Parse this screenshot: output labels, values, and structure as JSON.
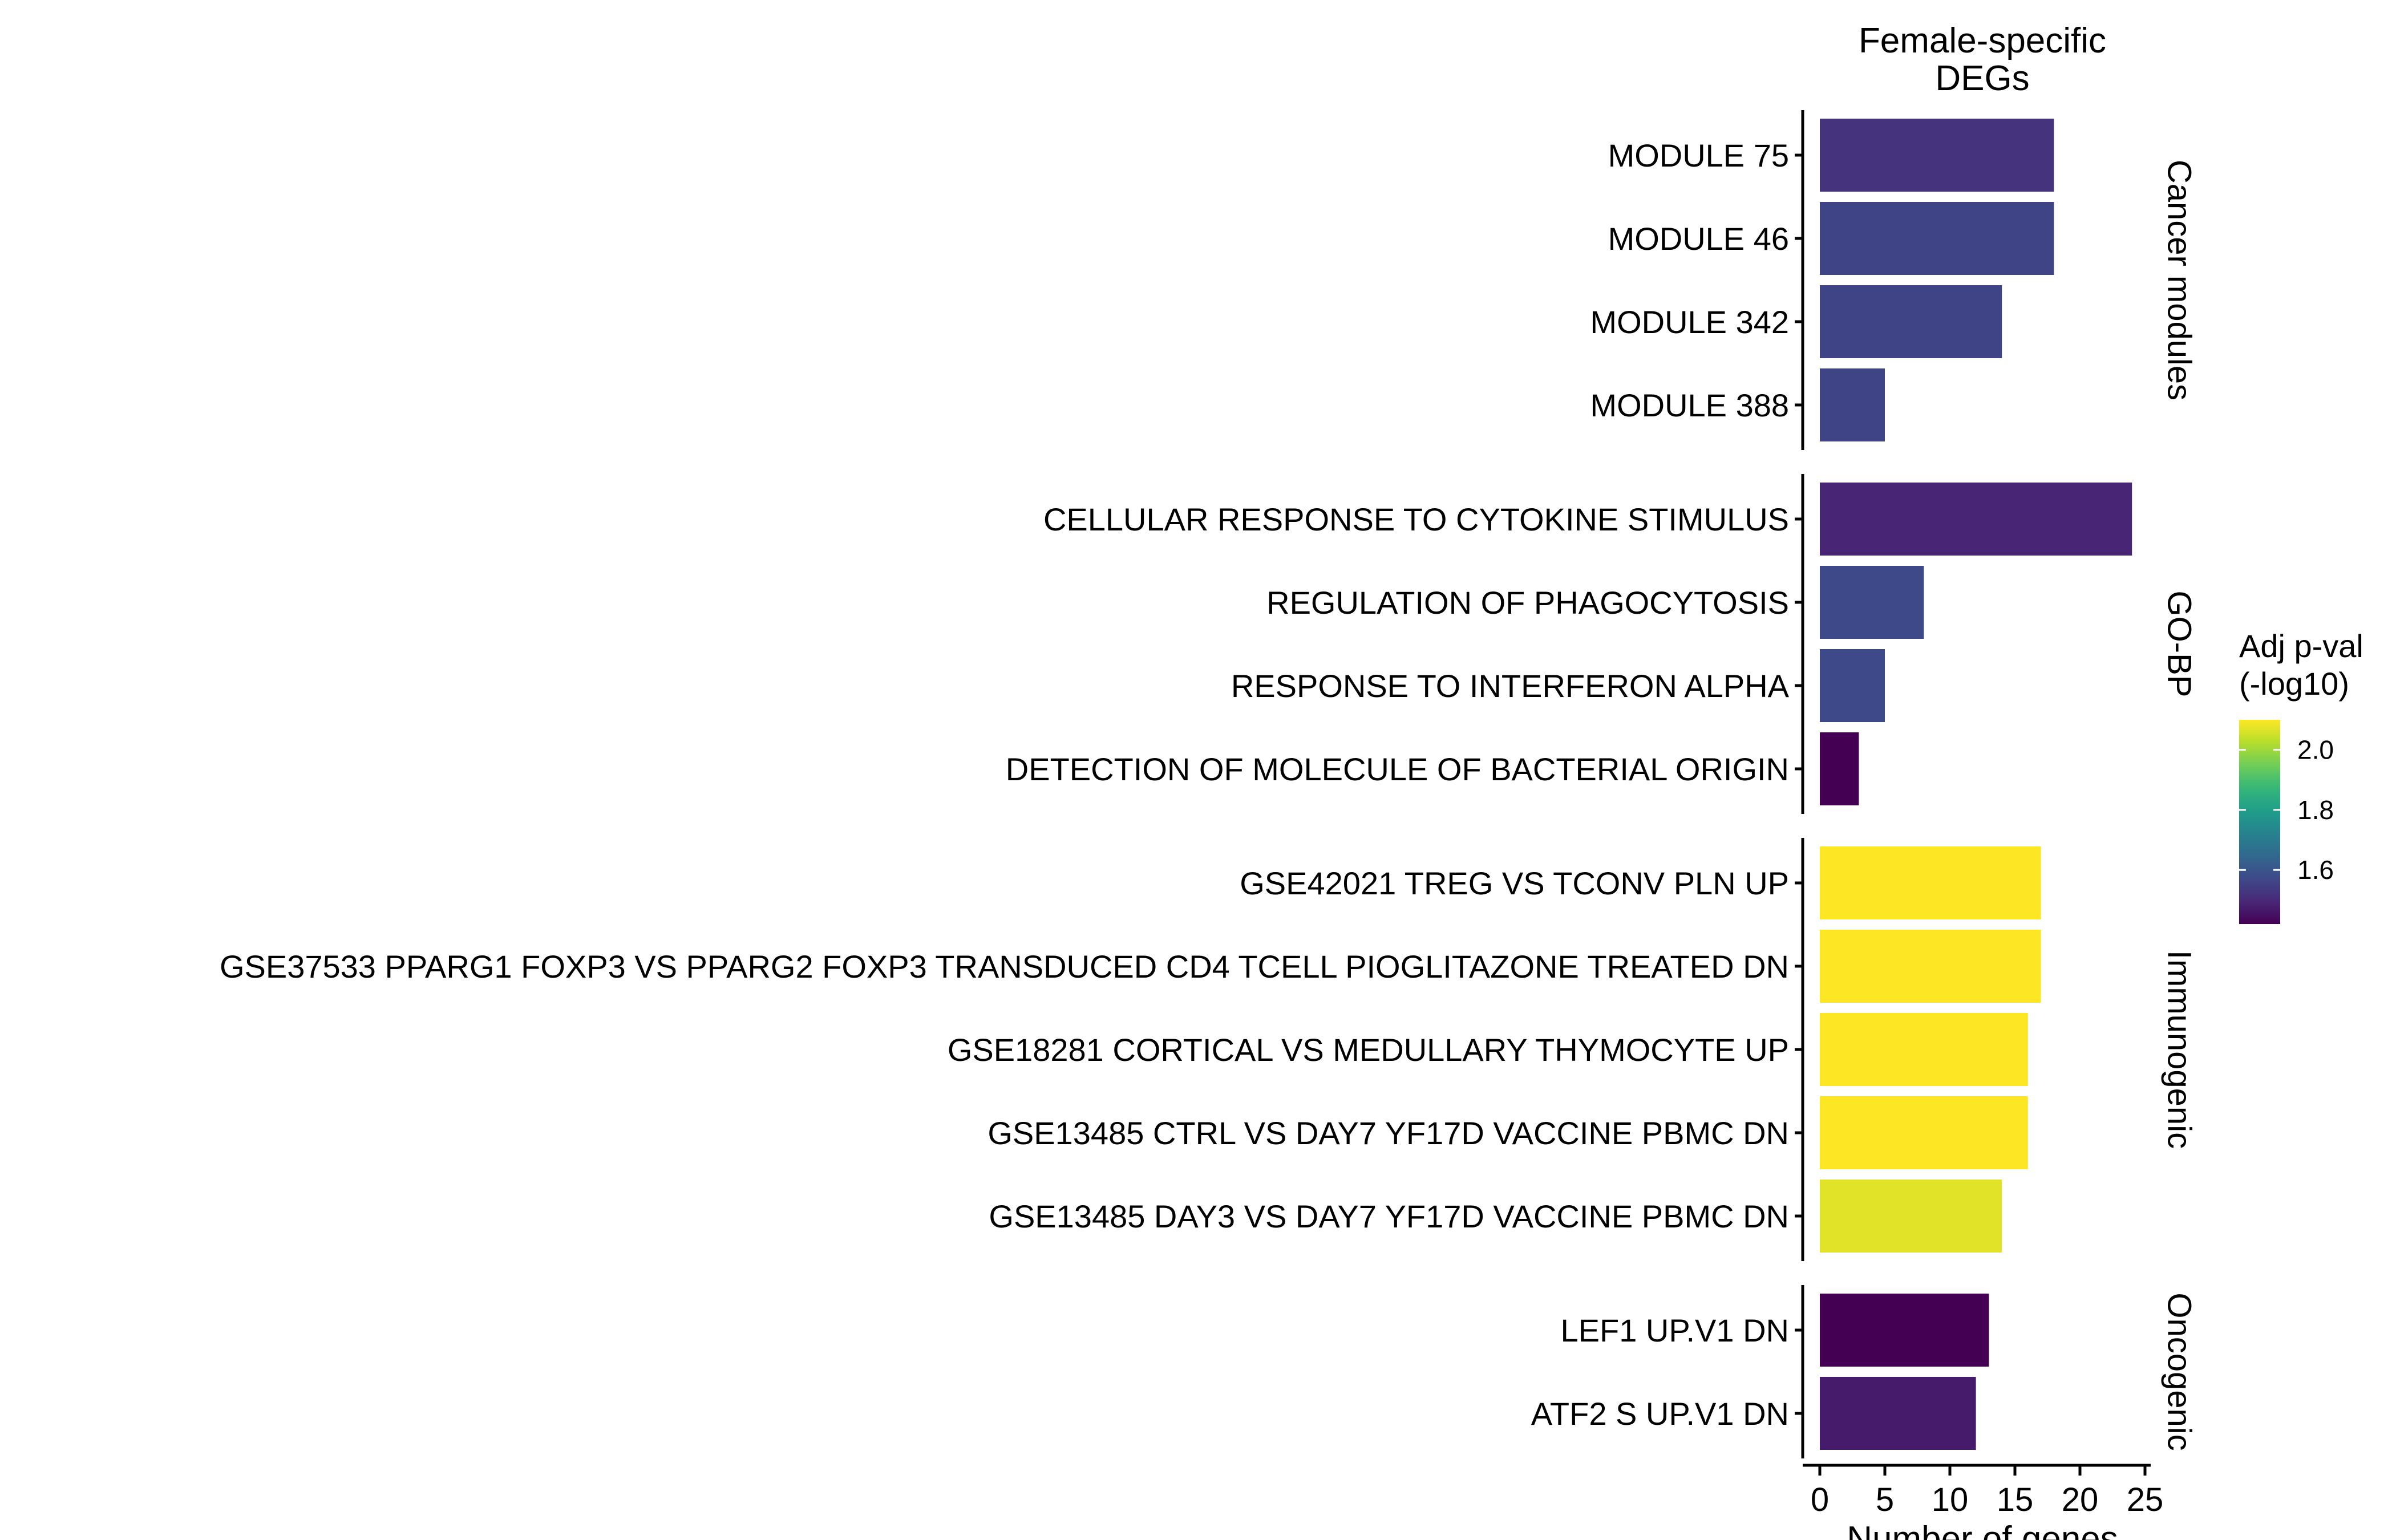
{
  "chart_data": {
    "type": "bar",
    "orientation": "horizontal",
    "title": "Female-specific\nDEGs",
    "xlabel": "Number of genes",
    "ylabel": "",
    "xlim": [
      0,
      25
    ],
    "xticks": [
      0,
      5,
      10,
      15,
      20,
      25
    ],
    "legend": {
      "title": "Adj p-val\n(-log10)",
      "placement": "right",
      "range": [
        1.42,
        2.1
      ],
      "ticks": [
        1.6,
        1.8,
        2.0
      ],
      "tick_labels": [
        "1.6",
        "1.8",
        "2.0"
      ],
      "colormap": "viridis"
    },
    "groups": [
      {
        "name": "Cancer modules",
        "items": [
          {
            "label": "MODULE 75",
            "value": 18,
            "color_value": 1.52
          },
          {
            "label": "MODULE 46",
            "value": 18,
            "color_value": 1.56
          },
          {
            "label": "MODULE 342",
            "value": 14,
            "color_value": 1.56
          },
          {
            "label": "MODULE 388",
            "value": 5,
            "color_value": 1.56
          }
        ]
      },
      {
        "name": "GO-BP",
        "items": [
          {
            "label": "CELLULAR RESPONSE TO CYTOKINE STIMULUS",
            "value": 24,
            "color_value": 1.49
          },
          {
            "label": "REGULATION OF PHAGOCYTOSIS",
            "value": 8,
            "color_value": 1.57
          },
          {
            "label": "RESPONSE TO INTERFERON ALPHA",
            "value": 5,
            "color_value": 1.57
          },
          {
            "label": "DETECTION OF MOLECULE OF BACTERIAL ORIGIN",
            "value": 3,
            "color_value": 1.42
          }
        ]
      },
      {
        "name": "Immunogenic",
        "items": [
          {
            "label": "GSE42021 TREG VS TCONV PLN UP",
            "value": 17,
            "color_value": 2.1
          },
          {
            "label": "GSE37533 PPARG1 FOXP3 VS PPARG2 FOXP3 TRANSDUCED CD4 TCELL PIOGLITAZONE TREATED DN",
            "value": 17,
            "color_value": 2.1
          },
          {
            "label": "GSE18281 CORTICAL VS MEDULLARY THYMOCYTE UP",
            "value": 16,
            "color_value": 2.1
          },
          {
            "label": "GSE13485 CTRL VS DAY7 YF17D VACCINE PBMC DN",
            "value": 16,
            "color_value": 2.1
          },
          {
            "label": "GSE13485 DAY3 VS DAY7 YF17D VACCINE PBMC DN",
            "value": 14,
            "color_value": 2.07
          }
        ]
      },
      {
        "name": "Oncogenic",
        "items": [
          {
            "label": "LEF1 UP.V1 DN",
            "value": 13,
            "color_value": 1.42
          },
          {
            "label": "ATF2 S UP.V1 DN",
            "value": 12,
            "color_value": 1.47
          }
        ]
      }
    ]
  }
}
